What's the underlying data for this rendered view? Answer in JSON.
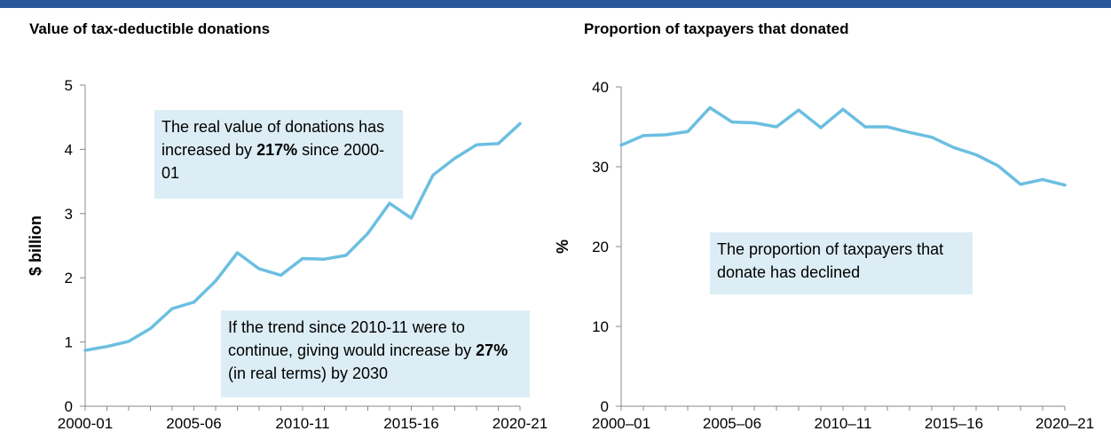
{
  "colors": {
    "line": "#6bbfe0",
    "header_bar": "#2b579a",
    "annotation_bg": "#dcedf5",
    "axis": "#888888"
  },
  "chart_data": [
    {
      "type": "line",
      "title": "Value of tax-deductible donations",
      "ylabel": "$ billion",
      "ylim": [
        0,
        5
      ],
      "yticks": [
        "0",
        "1",
        "2",
        "3",
        "4",
        "5"
      ],
      "xticks": [
        "2000-01",
        "2005-06",
        "2010-11",
        "2015-16",
        "2020-21"
      ],
      "categories": [
        "2000-01",
        "2001-02",
        "2002-03",
        "2003-04",
        "2004-05",
        "2005-06",
        "2006-07",
        "2007-08",
        "2008-09",
        "2009-10",
        "2010-11",
        "2011-12",
        "2012-13",
        "2013-14",
        "2014-15",
        "2015-16",
        "2016-17",
        "2017-18",
        "2018-19",
        "2019-20",
        "2020-21"
      ],
      "values": [
        0.87,
        0.93,
        1.01,
        1.21,
        1.52,
        1.62,
        1.95,
        2.39,
        2.14,
        2.04,
        2.3,
        2.29,
        2.35,
        2.69,
        3.16,
        2.93,
        3.6,
        3.86,
        4.07,
        4.09,
        4.4
      ],
      "annotations": {
        "a1": {
          "pre": "The real value of donations has increased by ",
          "bold": "217%",
          "post": " since 2000-01"
        },
        "a2": {
          "pre": "If the trend since 2010-11 were to continue, giving would increase by ",
          "bold": "27%",
          "post": " (in real terms) by 2030"
        }
      }
    },
    {
      "type": "line",
      "title": "Proportion of taxpayers that donated",
      "ylabel": "%",
      "ylim": [
        0,
        40
      ],
      "yticks": [
        "0",
        "10",
        "20",
        "30",
        "40"
      ],
      "xticks": [
        "2000–01",
        "2005–06",
        "2010–11",
        "2015–16",
        "2020–21"
      ],
      "categories": [
        "2000-01",
        "2001-02",
        "2002-03",
        "2003-04",
        "2004-05",
        "2005-06",
        "2006-07",
        "2007-08",
        "2008-09",
        "2009-10",
        "2010-11",
        "2011-12",
        "2012-13",
        "2013-14",
        "2014-15",
        "2015-16",
        "2016-17",
        "2017-18",
        "2018-19",
        "2019-20",
        "2020-21"
      ],
      "values": [
        32.7,
        33.9,
        34.0,
        34.4,
        37.4,
        35.6,
        35.5,
        35.0,
        37.1,
        34.9,
        37.2,
        35.0,
        35.0,
        34.3,
        33.7,
        32.4,
        31.5,
        30.1,
        27.8,
        28.4,
        27.7
      ],
      "annotations": {
        "a1": {
          "pre": "The proportion of taxpayers that donate has declined",
          "bold": "",
          "post": ""
        }
      }
    }
  ]
}
